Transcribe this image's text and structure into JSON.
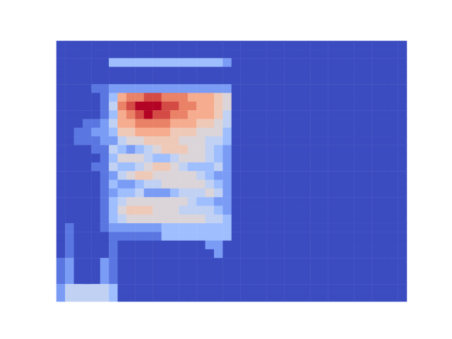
{
  "chart_data": {
    "type": "heatmap",
    "tick_labels": false,
    "color_range": [
      0,
      10
    ],
    "cells": [
      [
        0,
        0,
        0,
        0,
        0,
        0,
        0,
        0,
        0,
        0,
        0,
        0,
        0,
        0,
        0,
        0,
        0,
        0,
        0,
        0,
        0,
        0,
        0,
        0,
        0,
        0,
        0,
        0,
        0,
        0,
        0,
        0,
        0,
        0,
        0,
        0,
        0,
        0,
        0,
        0
      ],
      [
        0,
        0,
        0,
        0,
        0,
        0,
        0,
        0,
        0,
        0,
        0,
        0,
        0,
        0,
        0,
        0,
        0,
        0,
        0,
        0,
        0,
        0,
        0,
        0,
        0,
        0,
        0,
        0,
        0,
        0,
        0,
        0,
        0,
        0,
        0,
        0,
        0,
        0,
        0,
        0
      ],
      [
        0,
        0,
        0,
        0,
        0,
        0,
        3,
        3,
        3,
        3,
        3,
        3,
        3,
        3,
        3,
        3,
        3,
        3,
        3,
        2,
        0,
        0,
        0,
        0,
        0,
        0,
        0,
        0,
        0,
        0,
        0,
        0,
        0,
        0,
        0,
        0,
        0,
        0,
        0,
        0
      ],
      [
        0,
        0,
        0,
        0,
        0,
        0,
        0,
        0,
        0,
        0,
        0,
        0,
        0,
        0,
        0,
        0,
        0,
        0,
        0,
        0,
        0,
        0,
        0,
        0,
        0,
        0,
        0,
        0,
        0,
        0,
        0,
        0,
        0,
        0,
        0,
        0,
        0,
        0,
        0,
        0
      ],
      [
        0,
        0,
        0,
        0,
        0,
        0,
        0,
        0,
        0,
        0,
        0,
        0,
        0,
        0,
        0,
        0,
        0,
        0,
        0,
        0,
        0,
        0,
        0,
        0,
        0,
        0,
        0,
        0,
        0,
        0,
        0,
        0,
        0,
        0,
        0,
        0,
        0,
        0,
        0,
        0
      ],
      [
        0,
        0,
        0,
        0,
        1,
        1,
        2,
        2,
        2,
        2,
        2,
        2,
        2,
        2,
        2,
        2,
        2,
        2,
        2,
        2,
        0,
        0,
        0,
        0,
        0,
        0,
        0,
        0,
        0,
        0,
        0,
        0,
        0,
        0,
        0,
        0,
        0,
        0,
        0,
        0
      ],
      [
        0,
        0,
        0,
        0,
        0,
        1,
        3,
        7,
        8,
        8,
        9,
        9,
        8,
        8,
        8,
        7,
        7,
        7,
        6,
        5,
        0,
        0,
        0,
        0,
        0,
        0,
        0,
        0,
        0,
        0,
        0,
        0,
        0,
        0,
        0,
        0,
        0,
        0,
        0,
        0
      ],
      [
        0,
        0,
        0,
        0,
        0,
        1,
        4,
        8,
        9,
        10,
        10,
        10,
        9,
        9,
        8,
        8,
        7,
        7,
        6,
        5,
        0,
        0,
        0,
        0,
        0,
        0,
        0,
        0,
        0,
        0,
        0,
        0,
        0,
        0,
        0,
        0,
        0,
        0,
        0,
        0
      ],
      [
        0,
        0,
        0,
        0,
        0,
        1,
        3,
        7,
        8,
        9,
        10,
        9,
        9,
        8,
        8,
        7,
        7,
        7,
        6,
        4,
        0,
        0,
        0,
        0,
        0,
        0,
        0,
        0,
        0,
        0,
        0,
        0,
        0,
        0,
        0,
        0,
        0,
        0,
        0,
        0
      ],
      [
        0,
        0,
        0,
        1,
        1,
        2,
        4,
        7,
        7,
        8,
        8,
        8,
        8,
        7,
        7,
        7,
        6,
        6,
        5,
        4,
        0,
        0,
        0,
        0,
        0,
        0,
        0,
        0,
        0,
        0,
        0,
        0,
        0,
        0,
        0,
        0,
        0,
        0,
        0,
        0
      ],
      [
        0,
        0,
        1,
        1,
        2,
        2,
        3,
        6,
        6,
        7,
        7,
        7,
        7,
        6,
        6,
        6,
        5,
        5,
        5,
        3,
        0,
        0,
        0,
        0,
        0,
        0,
        0,
        0,
        0,
        0,
        0,
        0,
        0,
        0,
        0,
        0,
        0,
        0,
        0,
        0
      ],
      [
        0,
        0,
        1,
        1,
        1,
        2,
        2,
        4,
        5,
        5,
        6,
        6,
        6,
        6,
        5,
        5,
        5,
        4,
        4,
        3,
        0,
        0,
        0,
        0,
        0,
        0,
        0,
        0,
        0,
        0,
        0,
        0,
        0,
        0,
        0,
        0,
        0,
        0,
        0,
        0
      ],
      [
        0,
        0,
        0,
        0,
        1,
        1,
        4,
        3,
        2,
        3,
        4,
        5,
        6,
        6,
        6,
        5,
        5,
        4,
        3,
        2,
        0,
        0,
        0,
        0,
        0,
        0,
        0,
        0,
        0,
        0,
        0,
        0,
        0,
        0,
        0,
        0,
        0,
        0,
        0,
        0
      ],
      [
        0,
        0,
        0,
        0,
        0,
        1,
        3,
        5,
        5,
        5,
        4,
        3,
        3,
        4,
        5,
        5,
        5,
        4,
        3,
        2,
        0,
        0,
        0,
        0,
        0,
        0,
        0,
        0,
        0,
        0,
        0,
        0,
        0,
        0,
        0,
        0,
        0,
        0,
        0,
        0
      ],
      [
        0,
        0,
        0,
        0,
        1,
        1,
        4,
        3,
        3,
        4,
        5,
        6,
        6,
        5,
        4,
        3,
        3,
        3,
        4,
        2,
        0,
        0,
        0,
        0,
        0,
        0,
        0,
        0,
        0,
        0,
        0,
        0,
        0,
        0,
        0,
        0,
        0,
        0,
        0,
        0
      ],
      [
        0,
        0,
        0,
        0,
        0,
        1,
        2,
        4,
        5,
        6,
        6,
        5,
        5,
        5,
        5,
        5,
        4,
        3,
        2,
        2,
        0,
        0,
        0,
        0,
        0,
        0,
        0,
        0,
        0,
        0,
        0,
        0,
        0,
        0,
        0,
        0,
        0,
        0,
        0,
        0
      ],
      [
        0,
        0,
        0,
        0,
        0,
        1,
        3,
        2,
        2,
        3,
        4,
        4,
        5,
        5,
        5,
        5,
        5,
        4,
        3,
        2,
        0,
        0,
        0,
        0,
        0,
        0,
        0,
        0,
        0,
        0,
        0,
        0,
        0,
        0,
        0,
        0,
        0,
        0,
        0,
        0
      ],
      [
        0,
        0,
        0,
        0,
        0,
        1,
        2,
        3,
        3,
        4,
        2,
        2,
        2,
        3,
        4,
        4,
        4,
        5,
        4,
        2,
        0,
        0,
        0,
        0,
        0,
        0,
        0,
        0,
        0,
        0,
        0,
        0,
        0,
        0,
        0,
        0,
        0,
        0,
        0,
        0
      ],
      [
        0,
        0,
        0,
        0,
        0,
        1,
        3,
        4,
        5,
        5,
        5,
        5,
        5,
        5,
        5,
        4,
        3,
        3,
        2,
        2,
        0,
        0,
        0,
        0,
        0,
        0,
        0,
        0,
        0,
        0,
        0,
        0,
        0,
        0,
        0,
        0,
        0,
        0,
        0,
        0
      ],
      [
        0,
        0,
        0,
        0,
        0,
        1,
        3,
        5,
        6,
        6,
        6,
        5,
        5,
        5,
        4,
        4,
        4,
        4,
        3,
        2,
        0,
        0,
        0,
        0,
        0,
        0,
        0,
        0,
        0,
        0,
        0,
        0,
        0,
        0,
        0,
        0,
        0,
        0,
        0,
        0
      ],
      [
        0,
        0,
        0,
        0,
        0,
        1,
        3,
        4,
        5,
        5,
        5,
        5,
        5,
        5,
        5,
        5,
        5,
        4,
        4,
        3,
        0,
        0,
        0,
        0,
        0,
        0,
        0,
        0,
        0,
        0,
        0,
        0,
        0,
        0,
        0,
        0,
        0,
        0,
        0,
        0
      ],
      [
        0,
        1,
        0,
        0,
        0,
        1,
        2,
        2,
        2,
        2,
        2,
        2,
        3,
        3,
        3,
        3,
        3,
        3,
        3,
        3,
        0,
        0,
        0,
        0,
        0,
        0,
        0,
        0,
        0,
        0,
        0,
        0,
        0,
        0,
        0,
        0,
        0,
        0,
        0,
        0
      ],
      [
        0,
        1,
        0,
        0,
        0,
        0,
        1,
        1,
        1,
        1,
        1,
        1,
        3,
        3,
        3,
        3,
        3,
        3,
        3,
        3,
        0,
        0,
        0,
        0,
        0,
        0,
        0,
        0,
        0,
        0,
        0,
        0,
        0,
        0,
        0,
        0,
        0,
        0,
        0,
        0
      ],
      [
        0,
        1,
        0,
        0,
        0,
        0,
        1,
        0,
        0,
        0,
        0,
        0,
        0,
        0,
        0,
        0,
        0,
        2,
        2,
        0,
        0,
        0,
        0,
        0,
        0,
        0,
        0,
        0,
        0,
        0,
        0,
        0,
        0,
        0,
        0,
        0,
        0,
        0,
        0,
        0
      ],
      [
        0,
        1,
        0,
        0,
        0,
        0,
        1,
        0,
        0,
        0,
        0,
        0,
        0,
        0,
        0,
        0,
        0,
        0,
        2,
        0,
        0,
        0,
        0,
        0,
        0,
        0,
        0,
        0,
        0,
        0,
        0,
        0,
        0,
        0,
        0,
        0,
        0,
        0,
        0,
        0
      ],
      [
        1,
        2,
        0,
        0,
        0,
        2,
        1,
        0,
        0,
        0,
        0,
        0,
        0,
        0,
        0,
        0,
        0,
        0,
        0,
        0,
        0,
        0,
        0,
        0,
        0,
        0,
        0,
        0,
        0,
        0,
        0,
        0,
        0,
        0,
        0,
        0,
        0,
        0,
        0,
        0
      ],
      [
        1,
        2,
        0,
        0,
        0,
        2,
        1,
        0,
        0,
        0,
        0,
        0,
        0,
        0,
        0,
        0,
        0,
        0,
        0,
        0,
        0,
        0,
        0,
        0,
        0,
        0,
        0,
        0,
        0,
        0,
        0,
        0,
        0,
        0,
        0,
        0,
        0,
        0,
        0,
        0
      ],
      [
        1,
        2,
        0,
        0,
        0,
        2,
        1,
        0,
        0,
        0,
        0,
        0,
        0,
        0,
        0,
        0,
        0,
        0,
        0,
        0,
        0,
        0,
        0,
        0,
        0,
        0,
        0,
        0,
        0,
        0,
        0,
        0,
        0,
        0,
        0,
        0,
        0,
        0,
        0,
        0
      ],
      [
        2,
        4,
        4,
        4,
        4,
        4,
        3,
        0,
        0,
        0,
        0,
        0,
        0,
        0,
        0,
        0,
        0,
        0,
        0,
        0,
        0,
        0,
        0,
        0,
        0,
        0,
        0,
        0,
        0,
        0,
        0,
        0,
        0,
        0,
        0,
        0,
        0,
        0,
        0,
        0
      ],
      [
        2,
        4,
        4,
        4,
        4,
        4,
        3,
        0,
        0,
        0,
        0,
        0,
        0,
        0,
        0,
        0,
        0,
        0,
        0,
        0,
        0,
        0,
        0,
        0,
        0,
        0,
        0,
        0,
        0,
        0,
        0,
        0,
        0,
        0,
        0,
        0,
        0,
        0,
        0,
        0
      ]
    ]
  }
}
